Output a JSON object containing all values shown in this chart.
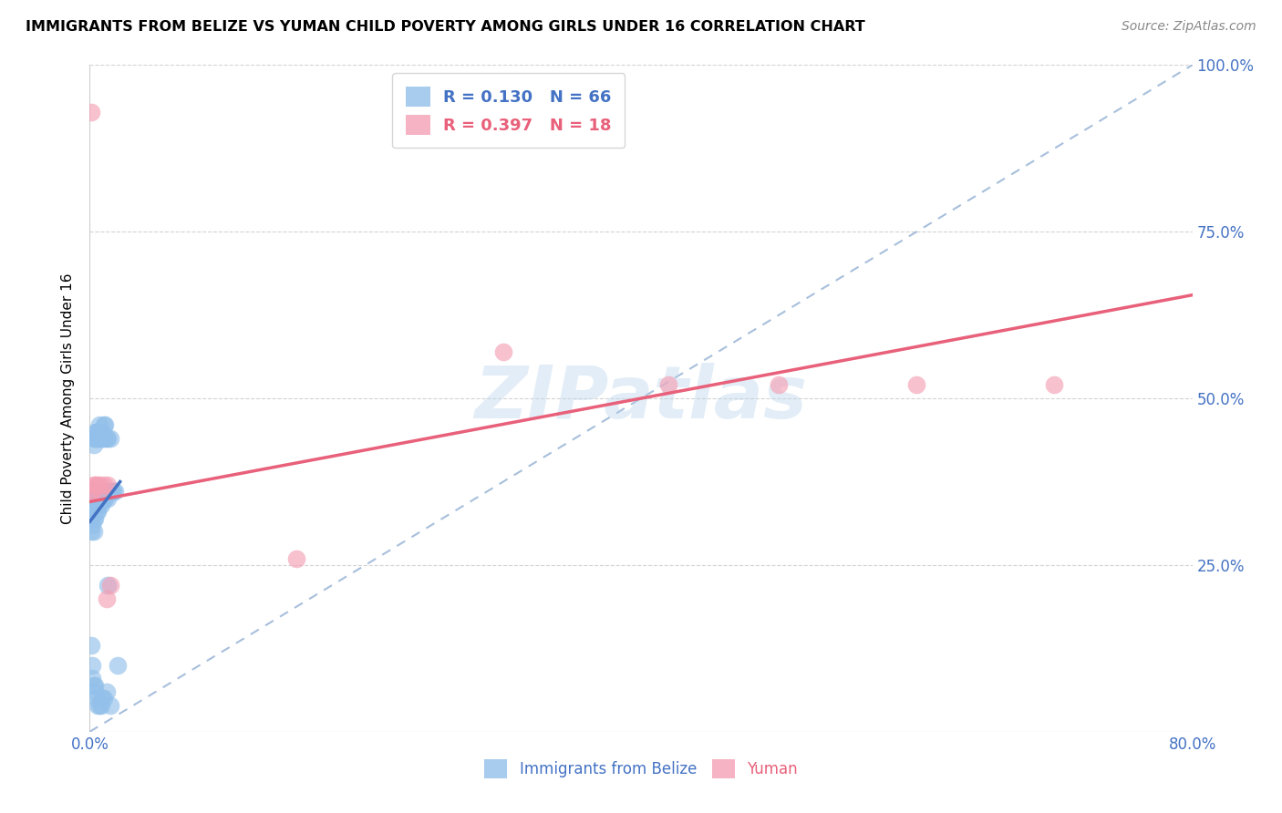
{
  "title": "IMMIGRANTS FROM BELIZE VS YUMAN CHILD POVERTY AMONG GIRLS UNDER 16 CORRELATION CHART",
  "source": "Source: ZipAtlas.com",
  "ylabel": "Child Poverty Among Girls Under 16",
  "xlim": [
    0.0,
    0.8
  ],
  "ylim": [
    0.0,
    1.0
  ],
  "xticks": [
    0.0,
    0.1,
    0.2,
    0.3,
    0.4,
    0.5,
    0.6,
    0.7,
    0.8
  ],
  "xticklabels": [
    "0.0%",
    "",
    "",
    "",
    "",
    "",
    "",
    "",
    "80.0%"
  ],
  "ytick_positions": [
    0.0,
    0.25,
    0.5,
    0.75,
    1.0
  ],
  "yticklabels_right": [
    "",
    "25.0%",
    "50.0%",
    "75.0%",
    "100.0%"
  ],
  "blue_R": "0.130",
  "blue_N": "66",
  "pink_R": "0.397",
  "pink_N": "18",
  "blue_color": "#92C0EA",
  "pink_color": "#F4A0B5",
  "blue_line_color": "#4472C4",
  "pink_line_color": "#E8607A",
  "diagonal_color": "#9EB8D8",
  "watermark": "ZIPatlas",
  "blue_points_x": [
    0.001,
    0.001,
    0.001,
    0.001,
    0.001,
    0.002,
    0.002,
    0.002,
    0.002,
    0.003,
    0.003,
    0.003,
    0.003,
    0.003,
    0.004,
    0.004,
    0.004,
    0.004,
    0.005,
    0.005,
    0.005,
    0.005,
    0.006,
    0.006,
    0.006,
    0.006,
    0.007,
    0.007,
    0.007,
    0.007,
    0.008,
    0.008,
    0.008,
    0.009,
    0.009,
    0.009,
    0.01,
    0.01,
    0.01,
    0.011,
    0.011,
    0.012,
    0.012,
    0.013,
    0.013,
    0.014,
    0.015,
    0.016,
    0.017,
    0.018,
    0.001,
    0.002,
    0.002,
    0.003,
    0.004,
    0.004,
    0.005,
    0.006,
    0.007,
    0.008,
    0.009,
    0.01,
    0.012,
    0.013,
    0.015,
    0.02
  ],
  "blue_points_y": [
    0.3,
    0.32,
    0.33,
    0.34,
    0.35,
    0.31,
    0.33,
    0.35,
    0.36,
    0.3,
    0.32,
    0.34,
    0.43,
    0.44,
    0.32,
    0.34,
    0.44,
    0.45,
    0.33,
    0.35,
    0.44,
    0.45,
    0.33,
    0.35,
    0.44,
    0.45,
    0.34,
    0.36,
    0.44,
    0.46,
    0.34,
    0.36,
    0.44,
    0.35,
    0.44,
    0.45,
    0.35,
    0.44,
    0.46,
    0.35,
    0.46,
    0.36,
    0.44,
    0.35,
    0.44,
    0.36,
    0.44,
    0.36,
    0.36,
    0.36,
    0.13,
    0.1,
    0.08,
    0.07,
    0.07,
    0.06,
    0.05,
    0.04,
    0.04,
    0.04,
    0.05,
    0.05,
    0.06,
    0.22,
    0.04,
    0.1
  ],
  "pink_points_x": [
    0.001,
    0.001,
    0.002,
    0.004,
    0.006,
    0.007,
    0.008,
    0.01,
    0.013,
    0.015,
    0.15,
    0.3,
    0.42,
    0.5,
    0.6,
    0.7,
    0.003,
    0.012
  ],
  "pink_points_y": [
    0.93,
    0.36,
    0.36,
    0.37,
    0.37,
    0.37,
    0.36,
    0.37,
    0.37,
    0.22,
    0.26,
    0.57,
    0.52,
    0.52,
    0.52,
    0.52,
    0.37,
    0.2
  ],
  "pink_line_x0": 0.0,
  "pink_line_y0": 0.345,
  "pink_line_x1": 0.8,
  "pink_line_y1": 0.655,
  "blue_line_x0": 0.0,
  "blue_line_y0": 0.315,
  "blue_line_x1": 0.022,
  "blue_line_y1": 0.375
}
